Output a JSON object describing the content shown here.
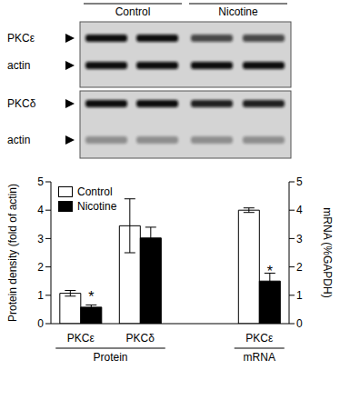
{
  "blot": {
    "lane_groups": [
      "Control",
      "Nicotine"
    ],
    "panels": [
      [
        "PKCε",
        "actin"
      ],
      [
        "PKCδ",
        "actin"
      ]
    ]
  },
  "chart_data": {
    "type": "bar",
    "categories": [
      "PKCε",
      "PKCδ",
      null,
      "PKCε"
    ],
    "groups": [
      {
        "label": "Protein",
        "start": 0,
        "end": 1
      },
      {
        "label": "mRNA",
        "start": 3,
        "end": 3,
        "axis": "y2"
      }
    ],
    "series": [
      {
        "name": "Control",
        "color": "#ffffff",
        "values": [
          1.07,
          3.45,
          null,
          4.0
        ],
        "errors": [
          0.1,
          0.95,
          null,
          0.08
        ]
      },
      {
        "name": "Nicotine",
        "color": "#000000",
        "values": [
          0.58,
          3.02,
          null,
          1.5
        ],
        "errors": [
          0.08,
          0.38,
          null,
          0.28
        ],
        "annotations": [
          "*",
          null,
          null,
          "*"
        ]
      }
    ],
    "ylabel": "Protein density (fold of actin)",
    "ylim": [
      0,
      5
    ],
    "yticks": [
      0,
      1,
      2,
      3,
      4,
      5
    ],
    "y2label": "mRNA (%GAPDH)",
    "y2lim": [
      0,
      5
    ],
    "y2ticks": [
      0,
      1,
      2,
      3,
      4,
      5
    ],
    "legend": "upper left"
  }
}
